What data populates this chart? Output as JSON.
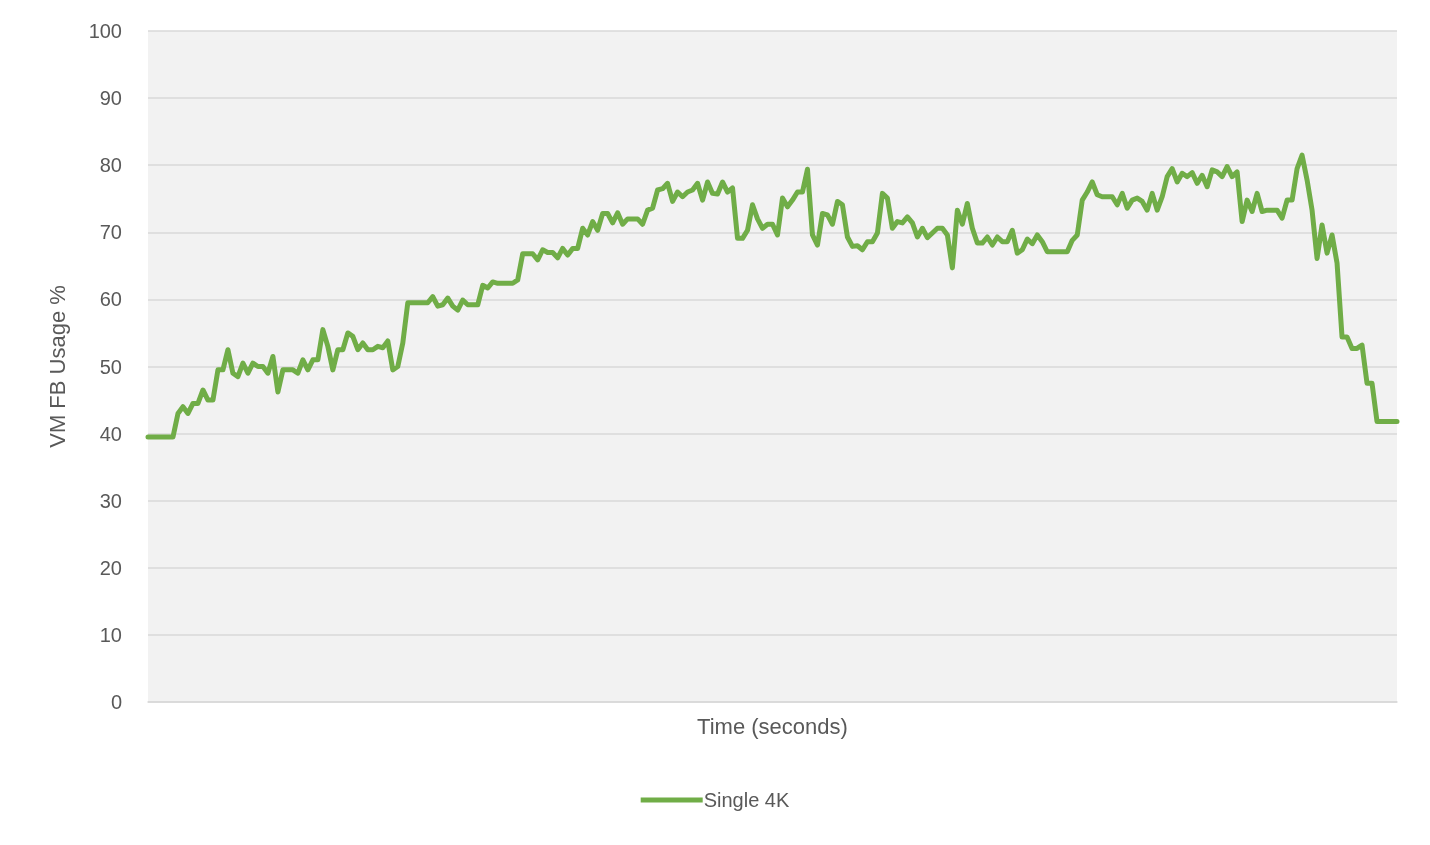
{
  "chart_data": {
    "type": "line",
    "xlabel": "Time (seconds)",
    "ylabel": "VM FB Usage %",
    "categories": [
      null,
      null,
      null,
      null,
      null,
      null,
      null,
      null,
      null,
      null,
      null,
      null,
      null,
      null,
      null,
      null,
      null,
      null,
      null,
      null,
      null,
      null,
      null,
      null,
      null,
      null,
      null,
      null,
      null,
      null,
      null,
      null,
      null,
      null,
      null,
      null,
      null,
      null,
      null,
      null,
      null,
      null,
      null,
      null,
      null,
      null,
      null,
      null,
      null,
      null,
      null,
      null,
      null,
      null,
      null,
      null,
      null,
      null,
      null,
      null,
      null,
      null,
      null,
      null,
      null,
      null,
      null,
      null,
      null,
      null,
      null,
      null,
      null,
      null,
      null,
      null,
      null,
      null,
      null,
      null,
      null,
      null,
      null,
      null,
      null,
      null,
      null,
      null,
      null,
      null,
      null,
      null,
      null,
      null,
      null,
      null,
      null,
      null,
      null,
      null,
      null,
      null,
      null,
      null,
      null,
      null,
      null,
      null,
      null,
      null,
      null,
      null,
      null,
      null,
      null,
      null,
      null,
      null,
      null,
      null,
      null,
      null,
      null,
      null,
      null,
      null,
      null,
      null,
      null,
      null,
      null,
      null,
      null,
      null,
      null,
      null,
      null,
      null,
      null,
      null,
      null,
      null,
      null,
      null,
      null,
      null,
      null,
      null,
      null,
      null,
      null,
      null,
      null,
      null,
      null,
      null,
      null,
      null,
      null,
      null,
      null,
      null,
      null,
      null,
      null,
      null,
      null,
      null,
      null,
      null,
      null,
      null,
      null,
      null,
      null,
      null,
      null,
      null,
      null,
      null,
      null,
      null,
      null,
      null,
      null,
      null,
      null,
      null,
      null,
      null,
      null,
      null,
      null,
      null,
      null,
      null,
      null,
      null,
      null,
      null,
      null,
      null,
      null,
      null,
      null,
      null,
      null,
      null,
      null,
      null,
      null,
      null,
      null,
      null,
      null,
      null,
      null,
      null,
      null,
      null,
      null,
      null,
      null,
      null,
      null,
      null,
      null,
      null,
      null,
      null,
      null,
      null,
      null,
      null,
      null,
      null,
      null,
      null,
      null,
      null,
      null,
      null,
      null,
      null,
      null,
      null,
      null,
      null,
      null,
      null,
      null
    ],
    "series": [
      {
        "name": "Single 4K",
        "color": "#70ad47",
        "values": [
          39.5,
          39.5,
          39.5,
          39.5,
          39.5,
          39.5,
          43,
          44,
          43,
          44.5,
          44.5,
          46.5,
          45,
          45,
          49.5,
          49.5,
          52.5,
          49,
          48.5,
          50.5,
          49,
          50.5,
          50,
          50,
          49,
          51.5,
          46.2,
          49.5,
          49.5,
          49.5,
          49,
          51,
          49.5,
          51,
          51,
          55.5,
          53,
          49.5,
          52.5,
          52.5,
          55,
          54.5,
          52.5,
          53.5,
          52.5,
          52.5,
          53,
          52.8,
          53.8,
          49.5,
          50,
          53.5,
          59.5,
          59.5,
          59.5,
          59.5,
          59.5,
          60.4,
          59,
          59.2,
          60.2,
          59,
          58.4,
          59.9,
          59.2,
          59.2,
          59.2,
          62.1,
          61.7,
          62.6,
          62.4,
          62.4,
          62.4,
          62.4,
          62.9,
          66.8,
          66.8,
          66.8,
          65.9,
          67.4,
          67,
          67,
          66.2,
          67.6,
          66.6,
          67.6,
          67.6,
          70.6,
          69.6,
          71.6,
          70.3,
          72.8,
          72.8,
          71.4,
          72.9,
          71.2,
          72,
          72,
          72,
          71.2,
          73.3,
          73.6,
          76.3,
          76.5,
          77.3,
          74.6,
          76,
          75.3,
          76,
          76.3,
          77.3,
          74.8,
          77.5,
          75.8,
          75.7,
          77.5,
          76,
          76.6,
          69.1,
          69.1,
          70.3,
          74.1,
          72,
          70.6,
          71.2,
          71.2,
          69.6,
          75.1,
          73.8,
          74.8,
          76,
          76,
          79.4,
          69.6,
          68.1,
          72.8,
          72.6,
          71.2,
          74.6,
          74.1,
          69.3,
          67.9,
          68,
          67.4,
          68.6,
          68.6,
          69.9,
          75.8,
          75.1,
          70.6,
          71.6,
          71.4,
          72.3,
          71.4,
          69.3,
          70.6,
          69.2,
          69.9,
          70.6,
          70.6,
          69.6,
          64.7,
          73.3,
          71.2,
          74.3,
          70.6,
          68.4,
          68.4,
          69.3,
          68.1,
          69.3,
          68.6,
          68.6,
          70.3,
          66.9,
          67.4,
          69,
          68.3,
          69.6,
          68.6,
          67.1,
          67.1,
          67.1,
          67.1,
          67.1,
          68.8,
          69.6,
          74.8,
          76,
          77.5,
          75.6,
          75.3,
          75.3,
          75.3,
          74.1,
          75.8,
          73.6,
          74.8,
          75.1,
          74.6,
          73.3,
          75.8,
          73.3,
          75.3,
          78.3,
          79.5,
          77.5,
          78.8,
          78.3,
          78.9,
          77.3,
          78.5,
          76.8,
          79.3,
          79,
          78.3,
          79.8,
          78.3,
          79,
          71.6,
          74.8,
          73.1,
          75.8,
          73.1,
          73.3,
          73.3,
          73.3,
          72.1,
          74.8,
          74.8,
          79.5,
          81.5,
          77.8,
          73.3,
          66.1,
          71.1,
          66.9,
          69.6,
          65.4,
          54.4,
          54.4,
          52.7,
          52.7,
          53.2,
          47.5,
          47.5,
          41.8,
          41.8,
          41.8,
          41.8,
          41.8
        ]
      }
    ],
    "ylim": [
      0,
      100
    ],
    "yticks": [
      0,
      10,
      20,
      30,
      40,
      50,
      60,
      70,
      80,
      90,
      100
    ],
    "grid": "y",
    "legend": "bottom",
    "tick_labels": "y",
    "line_style": "solid"
  }
}
